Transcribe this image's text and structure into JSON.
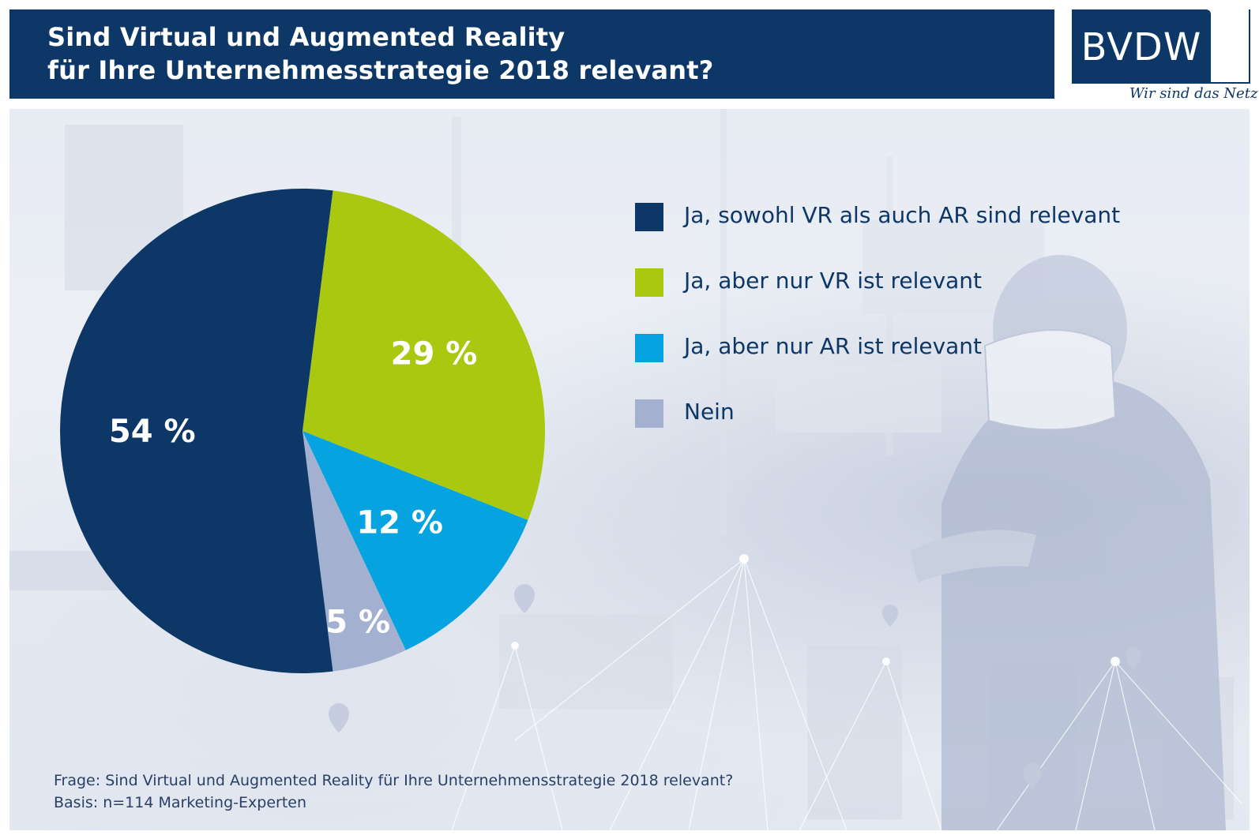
{
  "header": {
    "title_line1": "Sind Virtual und Augmented Reality",
    "title_line2": "für Ihre Unternehmesstrategie 2018 relevant?",
    "background_color": "#0d3766"
  },
  "logo": {
    "text": "BVDW",
    "tagline": "Wir sind das Netz"
  },
  "chart_data": {
    "type": "pie",
    "title": "Sind Virtual und Augmented Reality für Ihre Unternehmesstrategie 2018 relevant?",
    "categories": [
      "Ja, sowohl VR als auch AR sind relevant",
      "Ja, aber nur VR ist relevant",
      "Ja, aber nur AR ist relevant",
      "Nein"
    ],
    "values": [
      54,
      29,
      12,
      5
    ],
    "value_labels": [
      "54 %",
      "29 %",
      "12 %",
      "5 %"
    ],
    "colors": [
      "#0d3766",
      "#a9c80f",
      "#05a3e0",
      "#a4b0cf"
    ],
    "legend_position": "right",
    "start": "12 o'clock, clockwise: Ja, aber nur VR; Ja, aber nur AR; Nein; Ja, sowohl VR als auch AR"
  },
  "footer": {
    "question": "Frage: Sind Virtual und Augmented Reality für Ihre Unternehmensstrategie 2018 relevant?",
    "basis": "Basis: n=114 Marketing-Experten"
  }
}
